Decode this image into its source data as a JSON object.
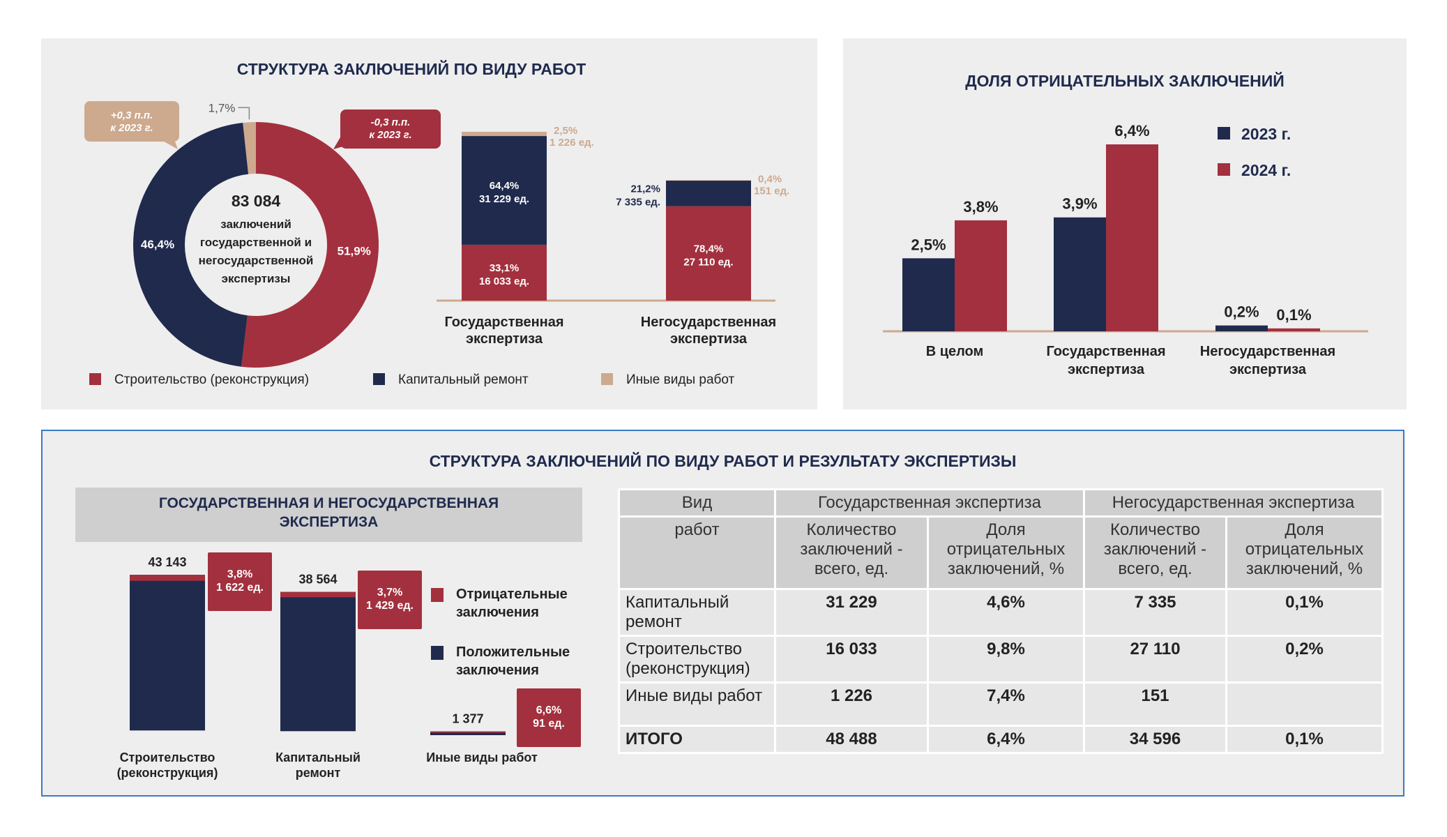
{
  "colors": {
    "red": "#a3303e",
    "navy": "#1f2a4d",
    "tan": "#cda98e",
    "text": "#1f2a4d"
  },
  "donut": {
    "title": "СТРУКТУРА ЗАКЛЮЧЕНИЙ ПО ВИДУ РАБОТ",
    "center_value": "83 084",
    "center_lines": [
      "заключений",
      "государственной и",
      "негосударственной",
      "экспертизы"
    ],
    "slices": [
      {
        "name": "Строительство (реконструкция)",
        "value": 51.9,
        "label": "51,9%",
        "color": "#a3303e"
      },
      {
        "name": "Капитальный ремонт",
        "value": 46.4,
        "label": "46,4%",
        "color": "#1f2a4d"
      },
      {
        "name": "Иные виды работ",
        "value": 1.7,
        "label": "1,7%",
        "color": "#cda98e"
      }
    ],
    "callout_tan": [
      "+0,3 п.п.",
      "к 2023 г."
    ],
    "callout_red": [
      "-0,3 п.п.",
      "к 2023 г."
    ]
  },
  "legend1": [
    {
      "label": "Строительство (реконструкция)",
      "color": "#a3303e"
    },
    {
      "label": "Капитальный ремонт",
      "color": "#1f2a4d"
    },
    {
      "label": "Иные виды работ",
      "color": "#cda98e"
    }
  ],
  "stack1": {
    "type": "bar",
    "categories": [
      [
        "Государственная",
        "экспертиза"
      ],
      [
        "Негосударственная",
        "экспертиза"
      ]
    ],
    "series": [
      {
        "name": "Строительство (реконструкция)",
        "color": "#a3303e",
        "values": [
          33.1,
          78.4
        ],
        "labels": [
          [
            "33,1%",
            "16 033 ед."
          ],
          [
            "78,4%",
            "27 110 ед."
          ]
        ]
      },
      {
        "name": "Капитальный ремонт",
        "color": "#1f2a4d",
        "values": [
          64.4,
          21.2
        ],
        "labels": [
          [
            "64,4%",
            "31 229 ед."
          ],
          [
            "21,2%",
            "7 335 ед."
          ]
        ]
      },
      {
        "name": "Иные виды работ",
        "color": "#cda98e",
        "values": [
          2.5,
          0.4
        ],
        "labels": [
          [
            "2,5%",
            "1 226 ед."
          ],
          [
            "0,4%",
            "151 ед."
          ]
        ]
      }
    ],
    "totals": [
      48488,
      34596
    ]
  },
  "neg": {
    "type": "bar",
    "title": "ДОЛЯ ОТРИЦАТЕЛЬНЫХ ЗАКЛЮЧЕНИЙ",
    "categories": [
      [
        "В целом"
      ],
      [
        "Государственная",
        "экспертиза"
      ],
      [
        "Негосударственная",
        "экспертиза"
      ]
    ],
    "series": [
      {
        "name": "2023 г.",
        "color": "#1f2a4d",
        "values": [
          2.5,
          3.9,
          0.2
        ],
        "labels": [
          "2,5%",
          "3,9%",
          "0,2%"
        ]
      },
      {
        "name": "2024 г.",
        "color": "#a3303e",
        "values": [
          3.8,
          6.4,
          0.1
        ],
        "labels": [
          "3,8%",
          "6,4%",
          "0,1%"
        ]
      }
    ],
    "ylim": [
      0,
      6.4
    ]
  },
  "bottom": {
    "title": "СТРУКТУРА ЗАКЛЮЧЕНИЙ ПО ВИДУ РАБОТ И РЕЗУЛЬТАТУ ЭКСПЕРТИЗЫ",
    "subtitle_lines": [
      "ГОСУДАРСТВЕННАЯ И НЕГОСУДАРСТВЕННАЯ",
      "ЭКСПЕРТИЗА"
    ]
  },
  "stack2": {
    "type": "bar",
    "categories": [
      [
        "Строительство",
        "(реконструкция)"
      ],
      [
        "Капитальный",
        "ремонт"
      ],
      [
        "Иные виды работ"
      ]
    ],
    "totals": [
      43143,
      38564,
      1377
    ],
    "total_labels": [
      "43 143",
      "38 564",
      "1 377"
    ],
    "negative": [
      1622,
      1429,
      91
    ],
    "callouts": [
      [
        "3,8%",
        "1 622 ед."
      ],
      [
        "3,7%",
        "1 429 ед."
      ],
      [
        "6,6%",
        "91 ед."
      ]
    ],
    "legend": [
      {
        "lines": [
          "Отрицательные",
          "заключения"
        ],
        "color": "#a3303e"
      },
      {
        "lines": [
          "Положительные",
          "заключения"
        ],
        "color": "#1f2a4d"
      }
    ]
  },
  "table": {
    "h_vid": "Вид",
    "h_rabot": "работ",
    "h_gos": "Государственная экспертиза",
    "h_negos": "Негосударственная экспертиза",
    "h_count": "Количество заключений - всего, ед.",
    "h_share": "Доля отрицательных заключений, %",
    "rows": [
      {
        "name": "Капитальный ремонт",
        "c1": "31 229",
        "s1": "4,6%",
        "c2": "7 335",
        "s2": "0,1%"
      },
      {
        "name": "Строительство (реконструкция)",
        "c1": "16 033",
        "s1": "9,8%",
        "c2": "27 110",
        "s2": "0,2%"
      },
      {
        "name": "Иные виды работ",
        "c1": "1 226",
        "s1": "7,4%",
        "c2": "151",
        "s2": ""
      },
      {
        "name": "ИТОГО",
        "c1": "48 488",
        "s1": "6,4%",
        "c2": "34 596",
        "s2": "0,1%"
      }
    ]
  }
}
